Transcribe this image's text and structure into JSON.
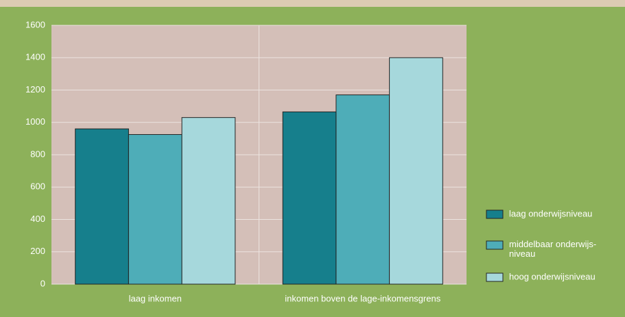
{
  "chart_data": {
    "type": "bar",
    "categories": [
      "laag inkomen",
      "inkomen boven de lage-inkomensgrens"
    ],
    "series": [
      {
        "name": "laag onderwijsniveau",
        "color": "#167f8c",
        "values": [
          960,
          1065
        ]
      },
      {
        "name": "middelbaar onderwijs-niveau",
        "color": "#4eadb8",
        "values": [
          925,
          1170
        ]
      },
      {
        "name": "hoog onderwijsniveau",
        "color": "#a6d8dc",
        "values": [
          1030,
          1400
        ]
      }
    ],
    "ylim": [
      0,
      1600
    ],
    "yticks": [
      0,
      200,
      400,
      600,
      800,
      1000,
      1200,
      1400,
      1600
    ],
    "grid": true,
    "legend": "right"
  }
}
